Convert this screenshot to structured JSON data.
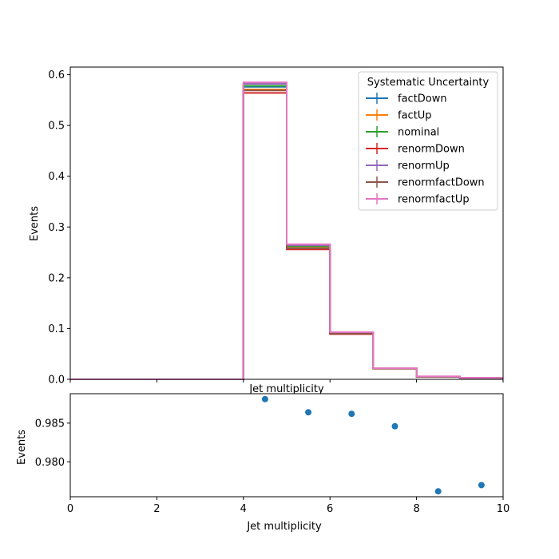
{
  "chart_data": [
    {
      "type": "line",
      "subtype": "step-histogram",
      "xlabel": "Jet multiplicity",
      "ylabel": "Events",
      "xlim": [
        0,
        10
      ],
      "ylim": [
        0,
        0.615
      ],
      "bin_edges": [
        0,
        1,
        2,
        3,
        4,
        5,
        6,
        7,
        8,
        9,
        10
      ],
      "yticks": [
        0.0,
        0.1,
        0.2,
        0.3,
        0.4,
        0.5,
        0.6
      ],
      "ytick_labels": [
        "0.0",
        "0.1",
        "0.2",
        "0.3",
        "0.4",
        "0.5",
        "0.6"
      ],
      "legend": {
        "title": "Systematic Uncertainty",
        "position": "upper right"
      },
      "series": [
        {
          "name": "factDown",
          "color": "#1f77b4",
          "values": [
            0,
            0,
            0,
            0,
            0.576,
            0.262,
            0.091,
            0.022,
            0.005,
            0.003
          ]
        },
        {
          "name": "factUp",
          "color": "#ff7f0e",
          "values": [
            0,
            0,
            0,
            0,
            0.571,
            0.259,
            0.09,
            0.022,
            0.005,
            0.003
          ]
        },
        {
          "name": "nominal",
          "color": "#2ca02c",
          "values": [
            0,
            0,
            0,
            0,
            0.578,
            0.262,
            0.091,
            0.022,
            0.005,
            0.003
          ]
        },
        {
          "name": "renormDown",
          "color": "#d62728",
          "values": [
            0,
            0,
            0,
            0,
            0.564,
            0.256,
            0.089,
            0.021,
            0.005,
            0.003
          ]
        },
        {
          "name": "renormUp",
          "color": "#9467bd",
          "values": [
            0,
            0,
            0,
            0,
            0.582,
            0.264,
            0.092,
            0.022,
            0.005,
            0.003
          ]
        },
        {
          "name": "renormfactDown",
          "color": "#8c564b",
          "values": [
            0,
            0,
            0,
            0,
            0.569,
            0.258,
            0.09,
            0.021,
            0.005,
            0.003
          ]
        },
        {
          "name": "renormfactUp",
          "color": "#e377c2",
          "values": [
            0,
            0,
            0,
            0,
            0.585,
            0.266,
            0.093,
            0.022,
            0.006,
            0.003
          ]
        }
      ]
    },
    {
      "type": "scatter",
      "xlabel": "Jet multiplicity",
      "ylabel": "Events",
      "xlim": [
        0,
        10
      ],
      "ylim": [
        0.9755,
        0.9888
      ],
      "xticks": [
        0,
        2,
        4,
        6,
        8,
        10
      ],
      "xtick_labels": [
        "0",
        "2",
        "4",
        "6",
        "8",
        "10"
      ],
      "yticks": [
        0.98,
        0.985
      ],
      "ytick_labels": [
        "0.980",
        "0.985"
      ],
      "color": "#1f77b4",
      "points": [
        {
          "x": 4.5,
          "y": 0.9881
        },
        {
          "x": 5.5,
          "y": 0.9864
        },
        {
          "x": 6.5,
          "y": 0.9862
        },
        {
          "x": 7.5,
          "y": 0.9846
        },
        {
          "x": 8.5,
          "y": 0.9762
        },
        {
          "x": 9.5,
          "y": 0.977
        }
      ]
    }
  ]
}
